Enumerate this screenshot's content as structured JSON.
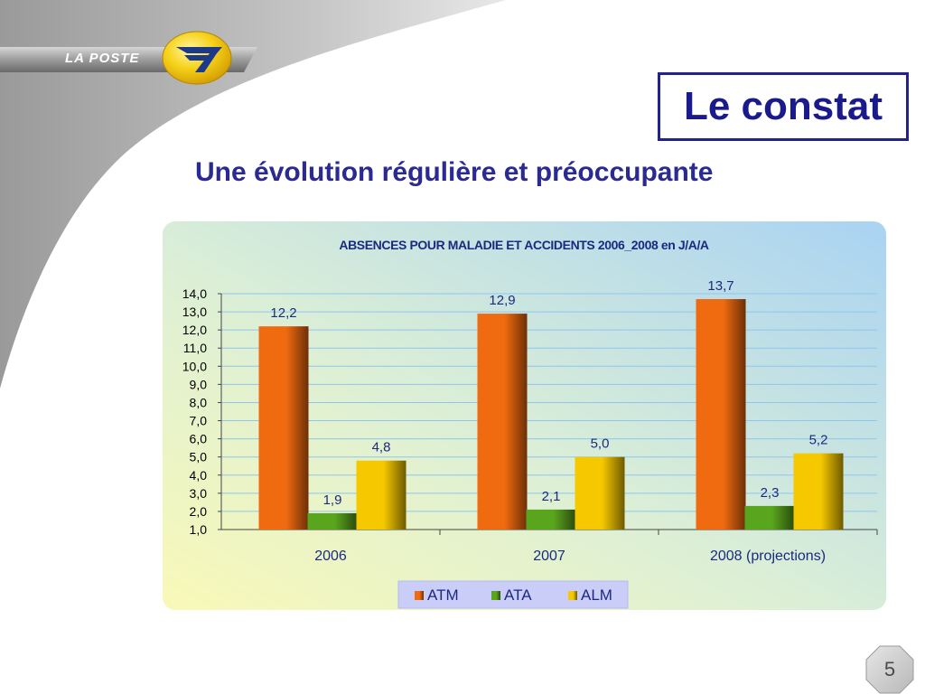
{
  "header": {
    "brand": "LA POSTE",
    "title": "Le constat",
    "subtitle": "Une évolution régulière et préoccupante"
  },
  "page": {
    "number": "5"
  },
  "chart_data": {
    "type": "bar",
    "title": "ABSENCES POUR MALADIE ET ACCIDENTS 2006_2008 en J/A/A",
    "categories": [
      "2006",
      "2007",
      "2008 (projections)"
    ],
    "series": [
      {
        "name": "ATM",
        "color": "#f06a10",
        "values": [
          12.2,
          12.9,
          13.7
        ],
        "labels": [
          "12,2",
          "12,9",
          "13,7"
        ]
      },
      {
        "name": "ATA",
        "color": "#5aa51e",
        "values": [
          1.9,
          2.1,
          2.3
        ],
        "labels": [
          "1,9",
          "2,1",
          "2,3"
        ]
      },
      {
        "name": "ALM",
        "color": "#f5c800",
        "values": [
          4.8,
          5.0,
          5.2
        ],
        "labels": [
          "4,8",
          "5,0",
          "5,2"
        ]
      }
    ],
    "ylim": [
      1.0,
      14.0
    ],
    "yticks": [
      "1,0",
      "2,0",
      "3,0",
      "4,0",
      "5,0",
      "6,0",
      "7,0",
      "8,0",
      "9,0",
      "10,0",
      "11,0",
      "12,0",
      "13,0",
      "14,0"
    ],
    "xlabel": "",
    "ylabel": "",
    "grid": true,
    "legend": "bottom"
  }
}
